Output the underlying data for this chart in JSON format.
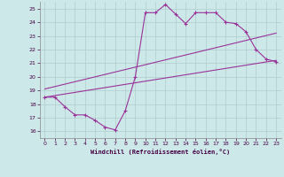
{
  "xlabel": "Windchill (Refroidissement éolien,°C)",
  "background_color": "#cde8e8",
  "grid_color": "#b0cccc",
  "line_color": "#993399",
  "x_ticks": [
    0,
    1,
    2,
    3,
    4,
    5,
    6,
    7,
    8,
    9,
    10,
    11,
    12,
    13,
    14,
    15,
    16,
    17,
    18,
    19,
    20,
    21,
    22,
    23
  ],
  "y_ticks": [
    16,
    17,
    18,
    19,
    20,
    21,
    22,
    23,
    24,
    25
  ],
  "xlim": [
    -0.5,
    23.5
  ],
  "ylim": [
    15.5,
    25.5
  ],
  "main_x": [
    0,
    1,
    2,
    3,
    4,
    5,
    6,
    7,
    8,
    9,
    10,
    11,
    12,
    13,
    14,
    15,
    16,
    17,
    18,
    19,
    20,
    21,
    22,
    23
  ],
  "main_y": [
    18.5,
    18.5,
    17.8,
    17.2,
    17.2,
    16.8,
    16.3,
    16.1,
    17.5,
    20.0,
    24.7,
    24.7,
    25.3,
    24.6,
    23.9,
    24.7,
    24.7,
    24.7,
    24.0,
    23.9,
    23.3,
    22.0,
    21.3,
    21.1
  ],
  "trend1_x": [
    0,
    23
  ],
  "trend1_y": [
    18.5,
    21.2
  ],
  "trend2_x": [
    0,
    23
  ],
  "trend2_y": [
    19.1,
    23.2
  ]
}
